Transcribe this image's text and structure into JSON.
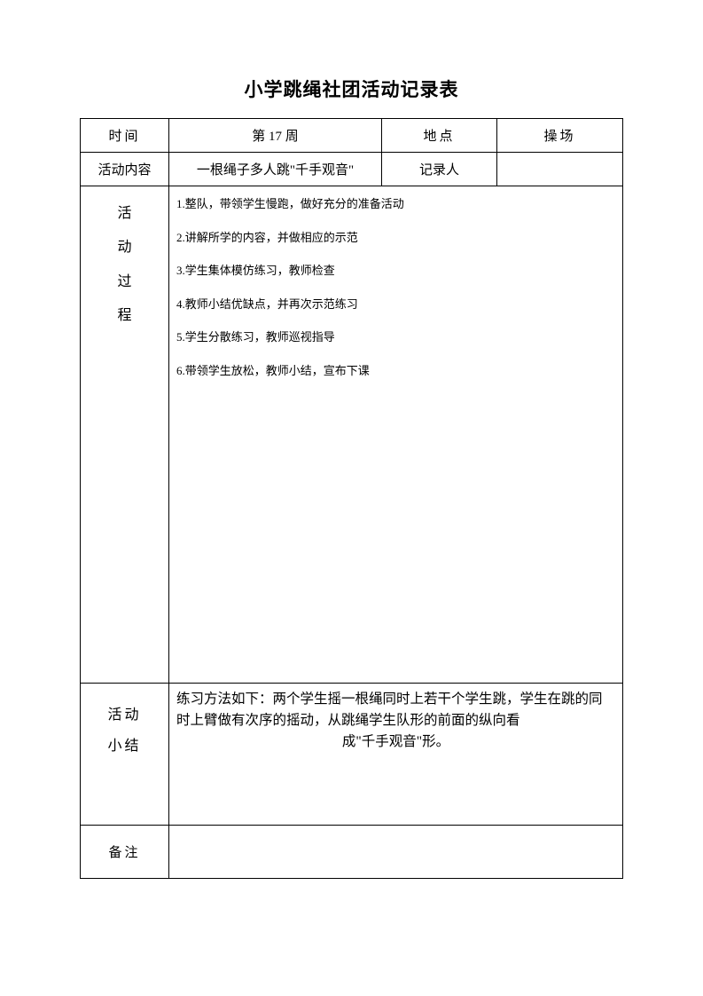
{
  "title": "小学跳绳社团活动记录表",
  "row1": {
    "time_label": "时间",
    "time_value": "第 17 周",
    "place_label": "地点",
    "place_value": "操场"
  },
  "row2": {
    "content_label": "活动内容",
    "content_value": "一根绳子多人跳\"千手观音\"",
    "recorder_label": "记录人",
    "recorder_value": ""
  },
  "process": {
    "label_chars": [
      "活",
      "动",
      "过",
      "程"
    ],
    "steps": [
      "1.整队，带领学生慢跑，做好充分的准备活动",
      "2.讲解所学的内容，并做相应的示范",
      "3.学生集体模仿练习，教师检查",
      "4.教师小结优缺点，并再次示范练习",
      "5.学生分散练习，教师巡视指导",
      "6.带领学生放松，教师小结，宣布下课"
    ]
  },
  "summary": {
    "label_line1": "活动",
    "label_line2": "小结",
    "text_line1": "练习方法如下：两个学生摇一根绳同时上若干个学生跳，学生在跳的同时上臂做有次序的摇动，从跳绳学生队形的前面的纵向看",
    "text_line2": "成\"千手观音\"形。"
  },
  "remark": {
    "label": "备注",
    "value": ""
  }
}
